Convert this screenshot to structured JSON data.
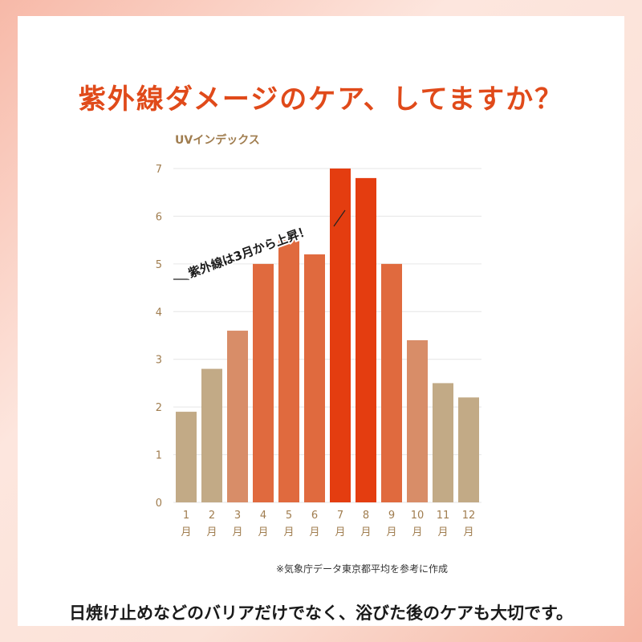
{
  "headline": "紫外線ダメージのケア、してますか？",
  "source_note": "※気象庁データ東京都平均を参考に作成",
  "caption": "日焼け止めなどのバリアだけでなく、浴びた後のケアも大切です。",
  "colors": {
    "headline": "#e04a1a",
    "low": "#c2aa86",
    "mid": "#d88d68",
    "high": "#e06a3e",
    "peak": "#e43d10",
    "axis_text": "#a07d4f"
  },
  "chart_data": {
    "type": "bar",
    "ylabel": "UVインデックス",
    "categories": [
      "1",
      "2",
      "3",
      "4",
      "5",
      "6",
      "7",
      "8",
      "9",
      "10",
      "11",
      "12"
    ],
    "category_unit": "月",
    "values": [
      1.9,
      2.8,
      3.6,
      5.0,
      5.5,
      5.2,
      7.0,
      6.8,
      5.0,
      3.4,
      2.5,
      2.2
    ],
    "bar_color_levels": [
      "low",
      "low",
      "mid",
      "high",
      "high",
      "high",
      "peak",
      "peak",
      "high",
      "mid",
      "low",
      "low"
    ],
    "ylim": [
      0,
      7
    ],
    "yticks": [
      0,
      1,
      2,
      3,
      4,
      5,
      6,
      7
    ],
    "grid": true,
    "annotation": "紫外線は3月から上昇！"
  }
}
